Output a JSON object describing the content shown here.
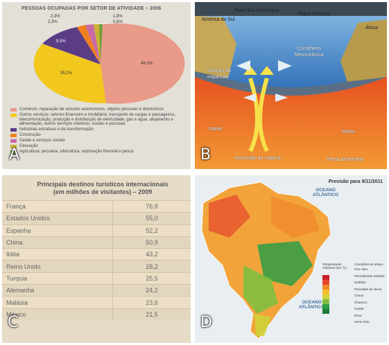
{
  "panels": {
    "a": {
      "letter": "A",
      "title": "PESSOAS OCUPADAS POR SETOR DE ATIVIDADE – 2006",
      "pie_labels": {
        "comercio": "48,0%",
        "outros": "35,2%",
        "industrias": "9,5%",
        "construcao": "2,3%",
        "saude": "2,3%",
        "educacao": "1,8%",
        "agricultura": "0,8%"
      },
      "legend": [
        {
          "label": "Comércio, reparação de veículos automotores, objetos pessoais e domésticos",
          "color": "#e99a88"
        },
        {
          "label": "Outros serviços: setores financeiro e imobiliário, transporte de cargas e passageiros, telecomunicação, produção e distribuição de eletricidade, gás e água, alojamento e alimentação, outros serviços coletivos, sociais e pessoais",
          "color": "#f2c71e"
        },
        {
          "label": "Indústrias extrativas e de transformação",
          "color": "#5b3d86"
        },
        {
          "label": "Construção",
          "color": "#ef7f1f"
        },
        {
          "label": "Saúde e serviços sociais",
          "color": "#c86aa6"
        },
        {
          "label": "Educação",
          "color": "#c9b233"
        },
        {
          "label": "Agricultura, pecuária, silvicultura, exploração florestal e pesca",
          "color": "#6f9a3a"
        }
      ]
    },
    "b": {
      "letter": "B",
      "labels": {
        "america_do_sul": "América do Sul",
        "placa_sul_americana": "Placa Sul-Americana",
        "placa_africana": "Placa Africana",
        "africa": "África",
        "cordilheira": "Cordilheira",
        "mesoceanica": "Mesoceânica",
        "direcao": "Direção da",
        "expansao": "expansão",
        "manto_left": "Manto",
        "manto_right": "Manto",
        "ascensao": "Ascensão do magma",
        "placa_litosfera": "Placa da litosfera"
      }
    },
    "c": {
      "letter": "C",
      "title_line1": "Principais destinos turísticos internacionais",
      "title_line2": "(em milhões de visitantes) – 2009",
      "rows": [
        {
          "country": "França",
          "value": "76,8"
        },
        {
          "country": "Estados Unidos",
          "value": "55,0"
        },
        {
          "country": "Espanha",
          "value": "52,2"
        },
        {
          "country": "China",
          "value": "50,9"
        },
        {
          "country": "Itália",
          "value": "43,2"
        },
        {
          "country": "Reino Unido",
          "value": "28,2"
        },
        {
          "country": "Turquia",
          "value": "25,5"
        },
        {
          "country": "Alemanha",
          "value": "24,2"
        },
        {
          "country": "Malásia",
          "value": "23,6"
        },
        {
          "country": "México",
          "value": "21,5"
        }
      ]
    },
    "d": {
      "letter": "D",
      "title": "Previsão para 9/11/2011",
      "ocean_north_1": "OCEANO",
      "ocean_north_2": "ATLÂNTICO",
      "ocean_south_1": "OCEANO",
      "ocean_south_2": "ATLÂNTICO",
      "legend_temp_title": "Temperaturas máximas (em °C)",
      "legend_cond_title": "Condições do tempo",
      "temp_colors": [
        "#c9202a",
        "#e5462b",
        "#f08a2c",
        "#f5bd2e",
        "#cfd23a",
        "#7fbf3f",
        "#2f9e46",
        "#1a7a3a"
      ],
      "conditions": [
        "Céu claro",
        "Parcialmente nublado",
        "Nublado",
        "Pancadas de chuva",
        "Chuva",
        "Chuvisco",
        "Geada",
        "Neve",
        "Vento forte"
      ]
    }
  }
}
